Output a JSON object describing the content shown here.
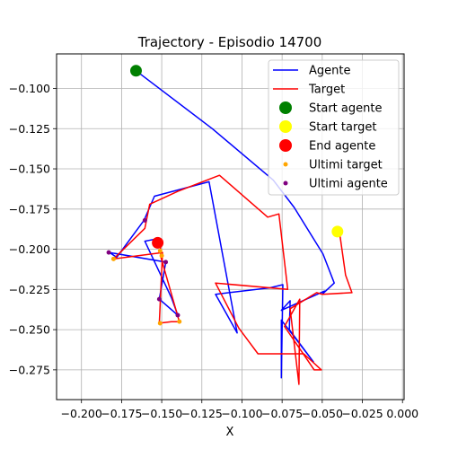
{
  "chart_data": {
    "type": "line",
    "title": "Trajectory - Episodio 14700",
    "xlabel": "X",
    "ylabel": "",
    "xlim": [
      -0.2155,
      0.001
    ],
    "ylim": [
      -0.2935,
      -0.0785
    ],
    "xticks": [
      -0.2,
      -0.175,
      -0.15,
      -0.125,
      -0.1,
      -0.075,
      -0.05,
      -0.025,
      0.0
    ],
    "xtick_labels": [
      "−0.200",
      "−0.175",
      "−0.150",
      "−0.125",
      "−0.100",
      "−0.075",
      "−0.050",
      "−0.025",
      "0.000"
    ],
    "yticks": [
      -0.1,
      -0.125,
      -0.15,
      -0.175,
      -0.2,
      -0.225,
      -0.25,
      -0.275
    ],
    "ytick_labels": [
      "−0.100",
      "−0.125",
      "−0.150",
      "−0.175",
      "−0.200",
      "−0.225",
      "−0.250",
      "−0.275"
    ],
    "grid": true,
    "legend_position": "top-right",
    "series": [
      {
        "name": "Agente",
        "kind": "line",
        "color": "#0000ff",
        "x": [
          -0.166,
          -0.1185,
          -0.0805,
          -0.0675,
          -0.0495,
          -0.0425,
          -0.05,
          -0.0485,
          -0.0755,
          -0.07,
          -0.0705,
          -0.0555,
          -0.0755,
          -0.0755,
          -0.0745,
          -0.0825,
          -0.1165,
          -0.103,
          -0.1205,
          -0.1545,
          -0.161,
          -0.178,
          -0.1825,
          -0.1475,
          -0.1515,
          -0.14,
          -0.144,
          -0.1605,
          -0.1555,
          -0.1525
        ],
        "y": [
          -0.089,
          -0.125,
          -0.157,
          -0.174,
          -0.203,
          -0.221,
          -0.228,
          -0.226,
          -0.238,
          -0.232,
          -0.25,
          -0.27,
          -0.244,
          -0.28,
          -0.222,
          -0.224,
          -0.228,
          -0.252,
          -0.158,
          -0.167,
          -0.182,
          -0.205,
          -0.202,
          -0.208,
          -0.231,
          -0.241,
          -0.23,
          -0.195,
          -0.194,
          -0.196
        ]
      },
      {
        "name": "Target",
        "kind": "line",
        "color": "#ff0000",
        "x": [
          -0.0405,
          -0.039,
          -0.0355,
          -0.0315,
          -0.05,
          -0.0535,
          -0.07,
          -0.0645,
          -0.064,
          -0.0735,
          -0.055,
          -0.0505,
          -0.0615,
          -0.09,
          -0.102,
          -0.1165,
          -0.0715,
          -0.077,
          -0.084,
          -0.114,
          -0.14,
          -0.1575,
          -0.1605,
          -0.18,
          -0.1495,
          -0.1515,
          -0.144,
          -0.139,
          -0.1505,
          -0.151
        ],
        "y": [
          -0.189,
          -0.191,
          -0.216,
          -0.227,
          -0.228,
          -0.227,
          -0.237,
          -0.284,
          -0.231,
          -0.248,
          -0.275,
          -0.275,
          -0.265,
          -0.265,
          -0.249,
          -0.221,
          -0.225,
          -0.178,
          -0.18,
          -0.154,
          -0.164,
          -0.172,
          -0.187,
          -0.206,
          -0.202,
          -0.246,
          -0.245,
          -0.245,
          -0.205,
          -0.195
        ]
      },
      {
        "name": "Start agente",
        "kind": "point",
        "color": "#008000",
        "x": [
          -0.166
        ],
        "y": [
          -0.089
        ]
      },
      {
        "name": "Start target",
        "kind": "point",
        "color": "#ffff00",
        "x": [
          -0.0405
        ],
        "y": [
          -0.189
        ]
      },
      {
        "name": "End agente",
        "kind": "point",
        "color": "#ff0000",
        "x": [
          -0.1525
        ],
        "y": [
          -0.196
        ]
      },
      {
        "name": "Ultimi target",
        "kind": "points",
        "color": "#ffa500",
        "x": [
          -0.18,
          -0.15,
          -0.151,
          -0.139,
          -0.151
        ],
        "y": [
          -0.206,
          -0.204,
          -0.246,
          -0.245,
          -0.201
        ]
      },
      {
        "name": "Ultimi agente",
        "kind": "points",
        "color": "#800080",
        "x": [
          -0.183,
          -0.1475,
          -0.1515,
          -0.14,
          -0.1605
        ],
        "y": [
          -0.202,
          -0.208,
          -0.231,
          -0.241,
          -0.182
        ]
      }
    ]
  }
}
